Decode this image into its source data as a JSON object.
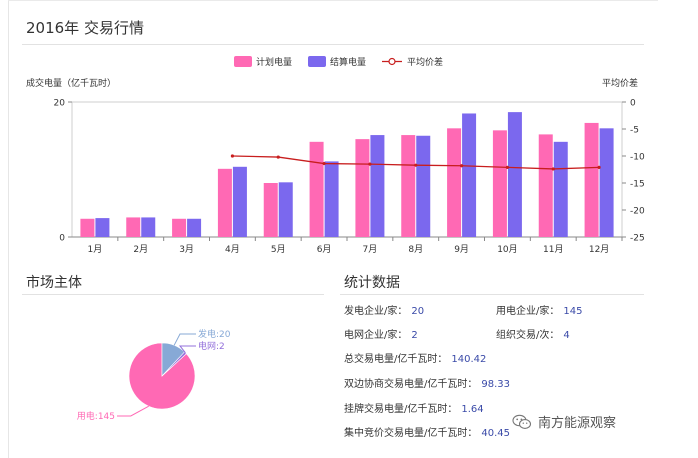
{
  "title": "2016年 交易行情",
  "chart_data": {
    "type": "bar",
    "categories": [
      "1月",
      "2月",
      "3月",
      "4月",
      "5月",
      "6月",
      "7月",
      "8月",
      "9月",
      "10月",
      "11月",
      "12月"
    ],
    "series": [
      {
        "name": "计划电量",
        "type": "bar",
        "axis": "left",
        "color": "#ff69b4",
        "values": [
          2.7,
          2.9,
          2.7,
          10.1,
          8.0,
          14.1,
          14.5,
          15.1,
          16.1,
          15.8,
          15.2,
          16.9
        ]
      },
      {
        "name": "结算电量",
        "type": "bar",
        "axis": "left",
        "color": "#7b68ee",
        "values": [
          2.8,
          2.9,
          2.7,
          10.4,
          8.1,
          11.2,
          15.1,
          15.0,
          18.3,
          18.5,
          14.1,
          16.1
        ]
      },
      {
        "name": "平均价差",
        "type": "line",
        "axis": "right",
        "color": "#c81e1e",
        "values": [
          null,
          null,
          null,
          -10.0,
          -10.2,
          -11.4,
          -11.5,
          -11.7,
          -11.8,
          -12.1,
          -12.4,
          -12.1
        ]
      }
    ],
    "ylabel": "成交电量（亿千瓦时）",
    "y2label": "平均价差",
    "ylim": [
      0,
      20
    ],
    "y2lim": [
      -25,
      0
    ],
    "yticks": [
      "0",
      "20"
    ],
    "y2ticks": [
      "0",
      "-5",
      "-10",
      "-15",
      "-20",
      "-25"
    ],
    "legend_position": "top-center"
  },
  "market": {
    "title": "市场主体",
    "pie": {
      "type": "pie",
      "slices": [
        {
          "label": "用电:145",
          "value": 145,
          "color": "#ff69b4"
        },
        {
          "label": "发电:20",
          "value": 20,
          "color": "#87a9d6"
        },
        {
          "label": "电网:2",
          "value": 2,
          "color": "#9370db"
        }
      ]
    }
  },
  "stats": {
    "title": "统计数据",
    "items": [
      {
        "label": "发电企业/家：",
        "value": "20"
      },
      {
        "label": "用电企业/家：",
        "value": "145"
      },
      {
        "label": "电网企业/家：",
        "value": "2"
      },
      {
        "label": "组织交易/次：",
        "value": "4"
      },
      {
        "label": "总交易电量/亿千瓦时：",
        "value": "140.42"
      },
      {
        "label": "双边协商交易电量/亿千瓦时：",
        "value": "98.33"
      },
      {
        "label": "挂牌交易电量/亿千瓦时：",
        "value": "1.64"
      },
      {
        "label": "集中竞价交易电量/亿千瓦时：",
        "value": "40.45"
      }
    ]
  },
  "watermark": {
    "text": "南方能源观察",
    "icon": "wechat-icon"
  }
}
